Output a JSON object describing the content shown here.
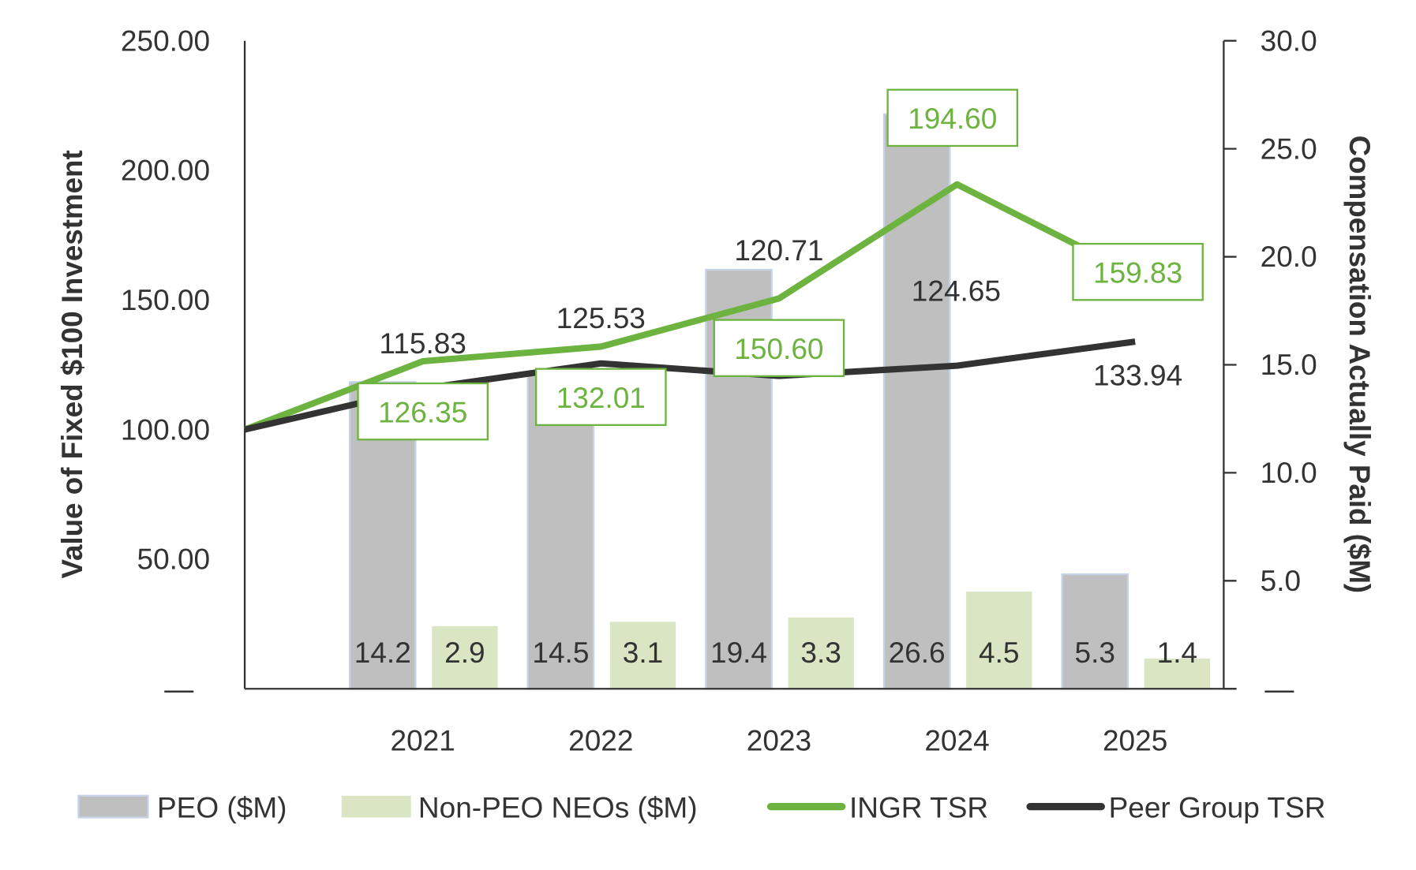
{
  "chart_data": {
    "type": "bar+line",
    "categories": [
      "",
      "2021",
      "2022",
      "2023",
      "2024",
      "2025"
    ],
    "ylabel_left": "Value of Fixed $100 Investment",
    "ylabel_right": "Compensation Actually Paid ($M)",
    "ylim_left": [
      0,
      250
    ],
    "ylim_right": [
      0,
      30
    ],
    "yticks_left": [
      "—",
      "50.00",
      "100.00",
      "150.00",
      "200.00",
      "250.00"
    ],
    "yticks_right": [
      "—",
      "5.0",
      "10.0",
      "15.0",
      "20.0",
      "25.0",
      "30.0"
    ],
    "grid": false,
    "legend_position": "bottom",
    "bar_series": [
      {
        "name": "PEO ($M)",
        "axis": "right",
        "color": "#bfbfbf",
        "values": [
          null,
          14.2,
          14.5,
          19.4,
          26.6,
          5.3
        ],
        "labels": [
          "",
          "14.2",
          "14.5",
          "19.4",
          "26.6",
          "5.3"
        ]
      },
      {
        "name": "Non-PEO NEOs ($M)",
        "axis": "right",
        "color": "#d9e5c3",
        "values": [
          null,
          2.9,
          3.1,
          3.3,
          4.5,
          1.4
        ],
        "labels": [
          "",
          "2.9",
          "3.1",
          "3.3",
          "4.5",
          "1.4"
        ]
      }
    ],
    "line_series": [
      {
        "name": "INGR TSR",
        "axis": "left",
        "color": "#6db33f",
        "values": [
          100,
          126.35,
          132.01,
          150.6,
          194.6,
          159.83
        ],
        "labels": [
          "",
          "126.35",
          "132.01",
          "150.60",
          "194.60",
          "159.83"
        ]
      },
      {
        "name": "Peer Group TSR",
        "axis": "left",
        "color": "#333333",
        "values": [
          100,
          115.83,
          125.53,
          120.71,
          124.65,
          133.94
        ],
        "labels": [
          "",
          "115.83",
          "125.53",
          "120.71",
          "124.65",
          "133.94"
        ]
      }
    ]
  }
}
